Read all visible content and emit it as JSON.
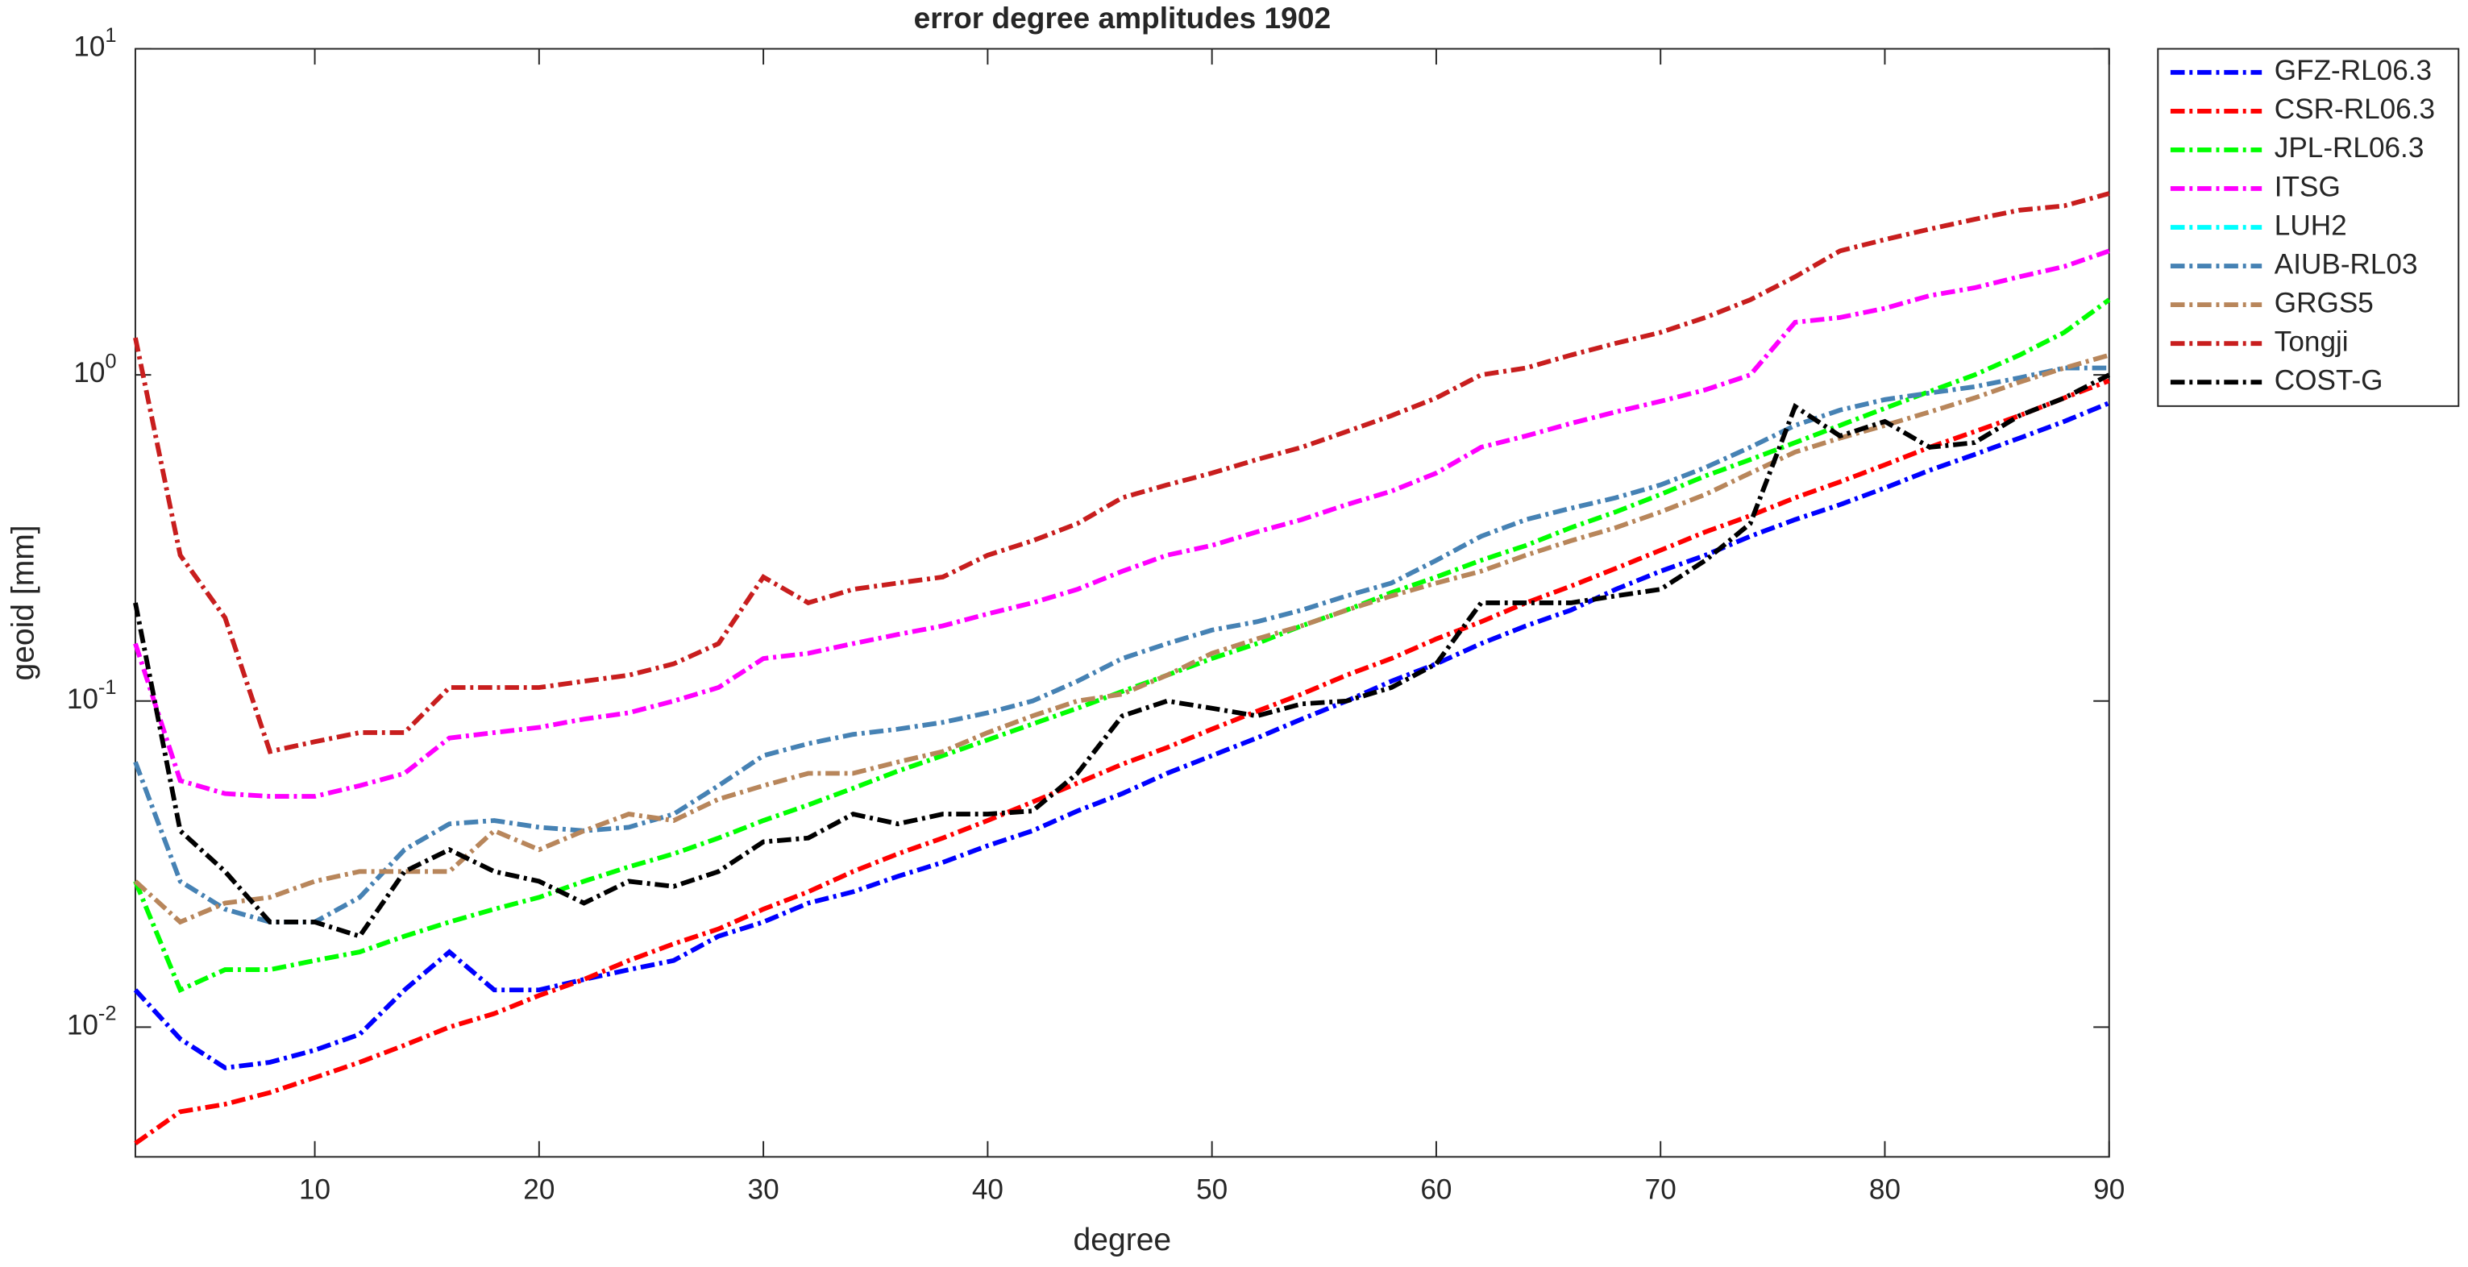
{
  "chart_data": {
    "type": "line",
    "title": "error degree amplitudes 1902",
    "x_label": "degree",
    "y_label": "geoid [mm]",
    "log_y": true,
    "xlim": [
      2,
      90
    ],
    "xticks": [
      10,
      20,
      30,
      40,
      50,
      60,
      70,
      80,
      90
    ],
    "ylim": [
      0.004,
      10
    ],
    "yticks": [
      {
        "value": 0.01,
        "label": "10^-2"
      },
      {
        "value": 0.1,
        "label": "10^-1"
      },
      {
        "value": 1,
        "label": "10^0"
      },
      {
        "value": 10,
        "label": "10^1"
      }
    ],
    "legend": "outside-upper-right",
    "x": [
      2,
      4,
      6,
      8,
      10,
      12,
      14,
      16,
      18,
      20,
      22,
      24,
      26,
      28,
      30,
      32,
      34,
      36,
      38,
      40,
      42,
      44,
      46,
      48,
      50,
      52,
      54,
      56,
      58,
      60,
      62,
      64,
      66,
      68,
      70,
      72,
      74,
      76,
      78,
      80,
      82,
      84,
      86,
      88,
      90
    ],
    "series": [
      {
        "name": "GFZ-RL06.3",
        "color": "#0000ff",
        "values": [
          0.013,
          0.0092,
          0.0075,
          0.0078,
          0.0085,
          0.0095,
          0.013,
          0.017,
          0.013,
          0.013,
          0.014,
          0.015,
          0.016,
          0.019,
          0.021,
          0.024,
          0.026,
          0.029,
          0.032,
          0.036,
          0.04,
          0.046,
          0.052,
          0.06,
          0.068,
          0.077,
          0.088,
          0.1,
          0.115,
          0.13,
          0.15,
          0.17,
          0.19,
          0.22,
          0.25,
          0.28,
          0.32,
          0.36,
          0.4,
          0.45,
          0.51,
          0.57,
          0.64,
          0.72,
          0.82
        ]
      },
      {
        "name": "CSR-RL06.3",
        "color": "#ff0000",
        "values": [
          0.0044,
          0.0055,
          0.0058,
          0.0063,
          0.007,
          0.0078,
          0.0088,
          0.01,
          0.011,
          0.0125,
          0.014,
          0.016,
          0.018,
          0.02,
          0.023,
          0.026,
          0.03,
          0.034,
          0.038,
          0.043,
          0.049,
          0.056,
          0.064,
          0.072,
          0.082,
          0.093,
          0.105,
          0.12,
          0.135,
          0.155,
          0.175,
          0.2,
          0.225,
          0.255,
          0.29,
          0.33,
          0.37,
          0.42,
          0.47,
          0.53,
          0.6,
          0.67,
          0.75,
          0.85,
          0.96
        ]
      },
      {
        "name": "JPL-RL06.3",
        "color": "#00ff00",
        "values": [
          0.028,
          0.013,
          0.015,
          0.015,
          0.016,
          0.017,
          0.019,
          0.021,
          0.023,
          0.025,
          0.028,
          0.031,
          0.034,
          0.038,
          0.043,
          0.048,
          0.054,
          0.061,
          0.068,
          0.076,
          0.085,
          0.095,
          0.107,
          0.12,
          0.135,
          0.15,
          0.17,
          0.19,
          0.215,
          0.24,
          0.27,
          0.3,
          0.34,
          0.38,
          0.43,
          0.49,
          0.55,
          0.62,
          0.7,
          0.79,
          0.89,
          1.0,
          1.15,
          1.35,
          1.7
        ]
      },
      {
        "name": "ITSG",
        "color": "#ff00ff",
        "values": [
          0.15,
          0.057,
          0.052,
          0.051,
          0.051,
          0.055,
          0.06,
          0.077,
          0.08,
          0.083,
          0.088,
          0.092,
          0.1,
          0.11,
          0.135,
          0.14,
          0.15,
          0.16,
          0.17,
          0.185,
          0.2,
          0.22,
          0.25,
          0.28,
          0.3,
          0.33,
          0.36,
          0.4,
          0.44,
          0.5,
          0.6,
          0.65,
          0.71,
          0.77,
          0.83,
          0.9,
          1.0,
          1.45,
          1.5,
          1.6,
          1.75,
          1.85,
          2.0,
          2.15,
          2.4
        ]
      },
      {
        "name": "LUH2",
        "color": "#00ffff",
        "values": [
          null,
          null,
          null,
          null,
          null,
          null,
          null,
          null,
          null,
          null,
          null,
          null,
          null,
          null,
          null,
          null,
          null,
          null,
          null,
          null,
          null,
          null,
          null,
          null,
          null,
          null,
          null,
          null,
          null,
          null,
          null,
          null,
          null,
          null,
          null,
          null,
          null,
          null,
          null,
          null,
          null,
          null,
          null,
          null,
          null
        ]
      },
      {
        "name": "AIUB-RL03",
        "color": "#4682b4",
        "values": [
          0.065,
          0.028,
          0.023,
          0.021,
          0.021,
          0.025,
          0.035,
          0.042,
          0.043,
          0.041,
          0.04,
          0.041,
          0.045,
          0.055,
          0.068,
          0.074,
          0.079,
          0.082,
          0.086,
          0.092,
          0.1,
          0.115,
          0.135,
          0.15,
          0.165,
          0.175,
          0.19,
          0.21,
          0.23,
          0.27,
          0.32,
          0.36,
          0.39,
          0.42,
          0.46,
          0.52,
          0.6,
          0.7,
          0.78,
          0.84,
          0.88,
          0.92,
          0.98,
          1.05,
          1.05
        ]
      },
      {
        "name": "GRGS5",
        "color": "#b8865b",
        "values": [
          0.028,
          0.021,
          0.024,
          0.025,
          0.028,
          0.03,
          0.03,
          0.03,
          0.04,
          0.035,
          0.04,
          0.045,
          0.043,
          0.05,
          0.055,
          0.06,
          0.06,
          0.065,
          0.07,
          0.08,
          0.09,
          0.1,
          0.105,
          0.12,
          0.14,
          0.155,
          0.17,
          0.19,
          0.21,
          0.23,
          0.25,
          0.28,
          0.31,
          0.34,
          0.38,
          0.43,
          0.5,
          0.58,
          0.64,
          0.7,
          0.77,
          0.85,
          0.95,
          1.05,
          1.15
        ]
      },
      {
        "name": "Tongji",
        "color": "#c81e1e",
        "values": [
          1.3,
          0.28,
          0.18,
          0.07,
          0.075,
          0.08,
          0.08,
          0.11,
          0.11,
          0.11,
          0.115,
          0.12,
          0.13,
          0.15,
          0.24,
          0.2,
          0.22,
          0.23,
          0.24,
          0.28,
          0.31,
          0.35,
          0.42,
          0.46,
          0.5,
          0.55,
          0.6,
          0.67,
          0.75,
          0.85,
          1.0,
          1.05,
          1.15,
          1.25,
          1.35,
          1.5,
          1.7,
          2.0,
          2.4,
          2.6,
          2.8,
          3.0,
          3.2,
          3.3,
          3.6
        ]
      },
      {
        "name": "COST-G",
        "color": "#000000",
        "values": [
          0.2,
          0.04,
          0.03,
          0.021,
          0.021,
          0.019,
          0.03,
          0.035,
          0.03,
          0.028,
          0.024,
          0.028,
          0.027,
          0.03,
          0.037,
          0.038,
          0.045,
          0.042,
          0.045,
          0.045,
          0.046,
          0.06,
          0.09,
          0.1,
          0.095,
          0.09,
          0.098,
          0.1,
          0.11,
          0.13,
          0.2,
          0.2,
          0.2,
          0.21,
          0.22,
          0.27,
          0.35,
          0.8,
          0.65,
          0.72,
          0.6,
          0.62,
          0.75,
          0.85,
          1.0
        ]
      }
    ]
  }
}
